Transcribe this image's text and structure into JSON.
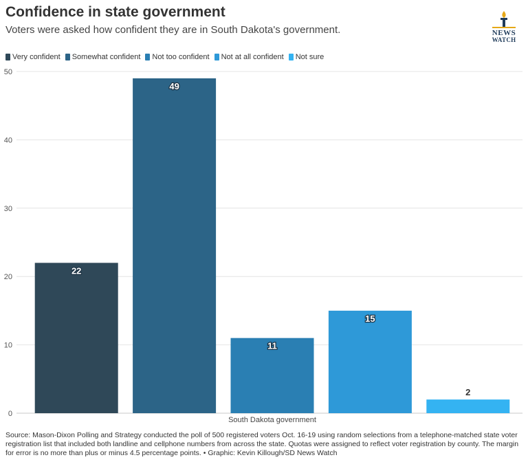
{
  "header": {
    "title": "Confidence in state government",
    "subtitle": "Voters were asked how confident they are in South Dakota's government."
  },
  "logo": {
    "line1": "NEWS",
    "line2": "WATCH",
    "icon": "torch-icon"
  },
  "chart_data": {
    "type": "bar",
    "categories": [
      "South Dakota government"
    ],
    "series": [
      {
        "name": "Very confident",
        "values": [
          22
        ],
        "color": "#2f4858"
      },
      {
        "name": "Somewhat confident",
        "values": [
          49
        ],
        "color": "#2c6487"
      },
      {
        "name": "Not too confident",
        "values": [
          11
        ],
        "color": "#2a7fb3"
      },
      {
        "name": "Not at all confident",
        "values": [
          15
        ],
        "color": "#2e99d8"
      },
      {
        "name": "Not sure",
        "values": [
          2
        ],
        "color": "#34b3f2"
      }
    ],
    "ylim": [
      0,
      50
    ],
    "yticks": [
      0,
      10,
      20,
      30,
      40,
      50
    ],
    "xlabel": "",
    "ylabel": "",
    "grid": true,
    "legend_position": "top-left"
  },
  "source": "Source: Mason-Dixon Polling and Strategy conducted the poll of 500 registered voters Oct. 16-19 using random selections from a telephone-matched state voter registration list that included both landline and cellphone numbers from across the state. Quotas were assigned to reflect voter registration by county. The margin for error is no more than plus or minus 4.5 percentage points. • Graphic: Kevin Killough/SD News Watch"
}
